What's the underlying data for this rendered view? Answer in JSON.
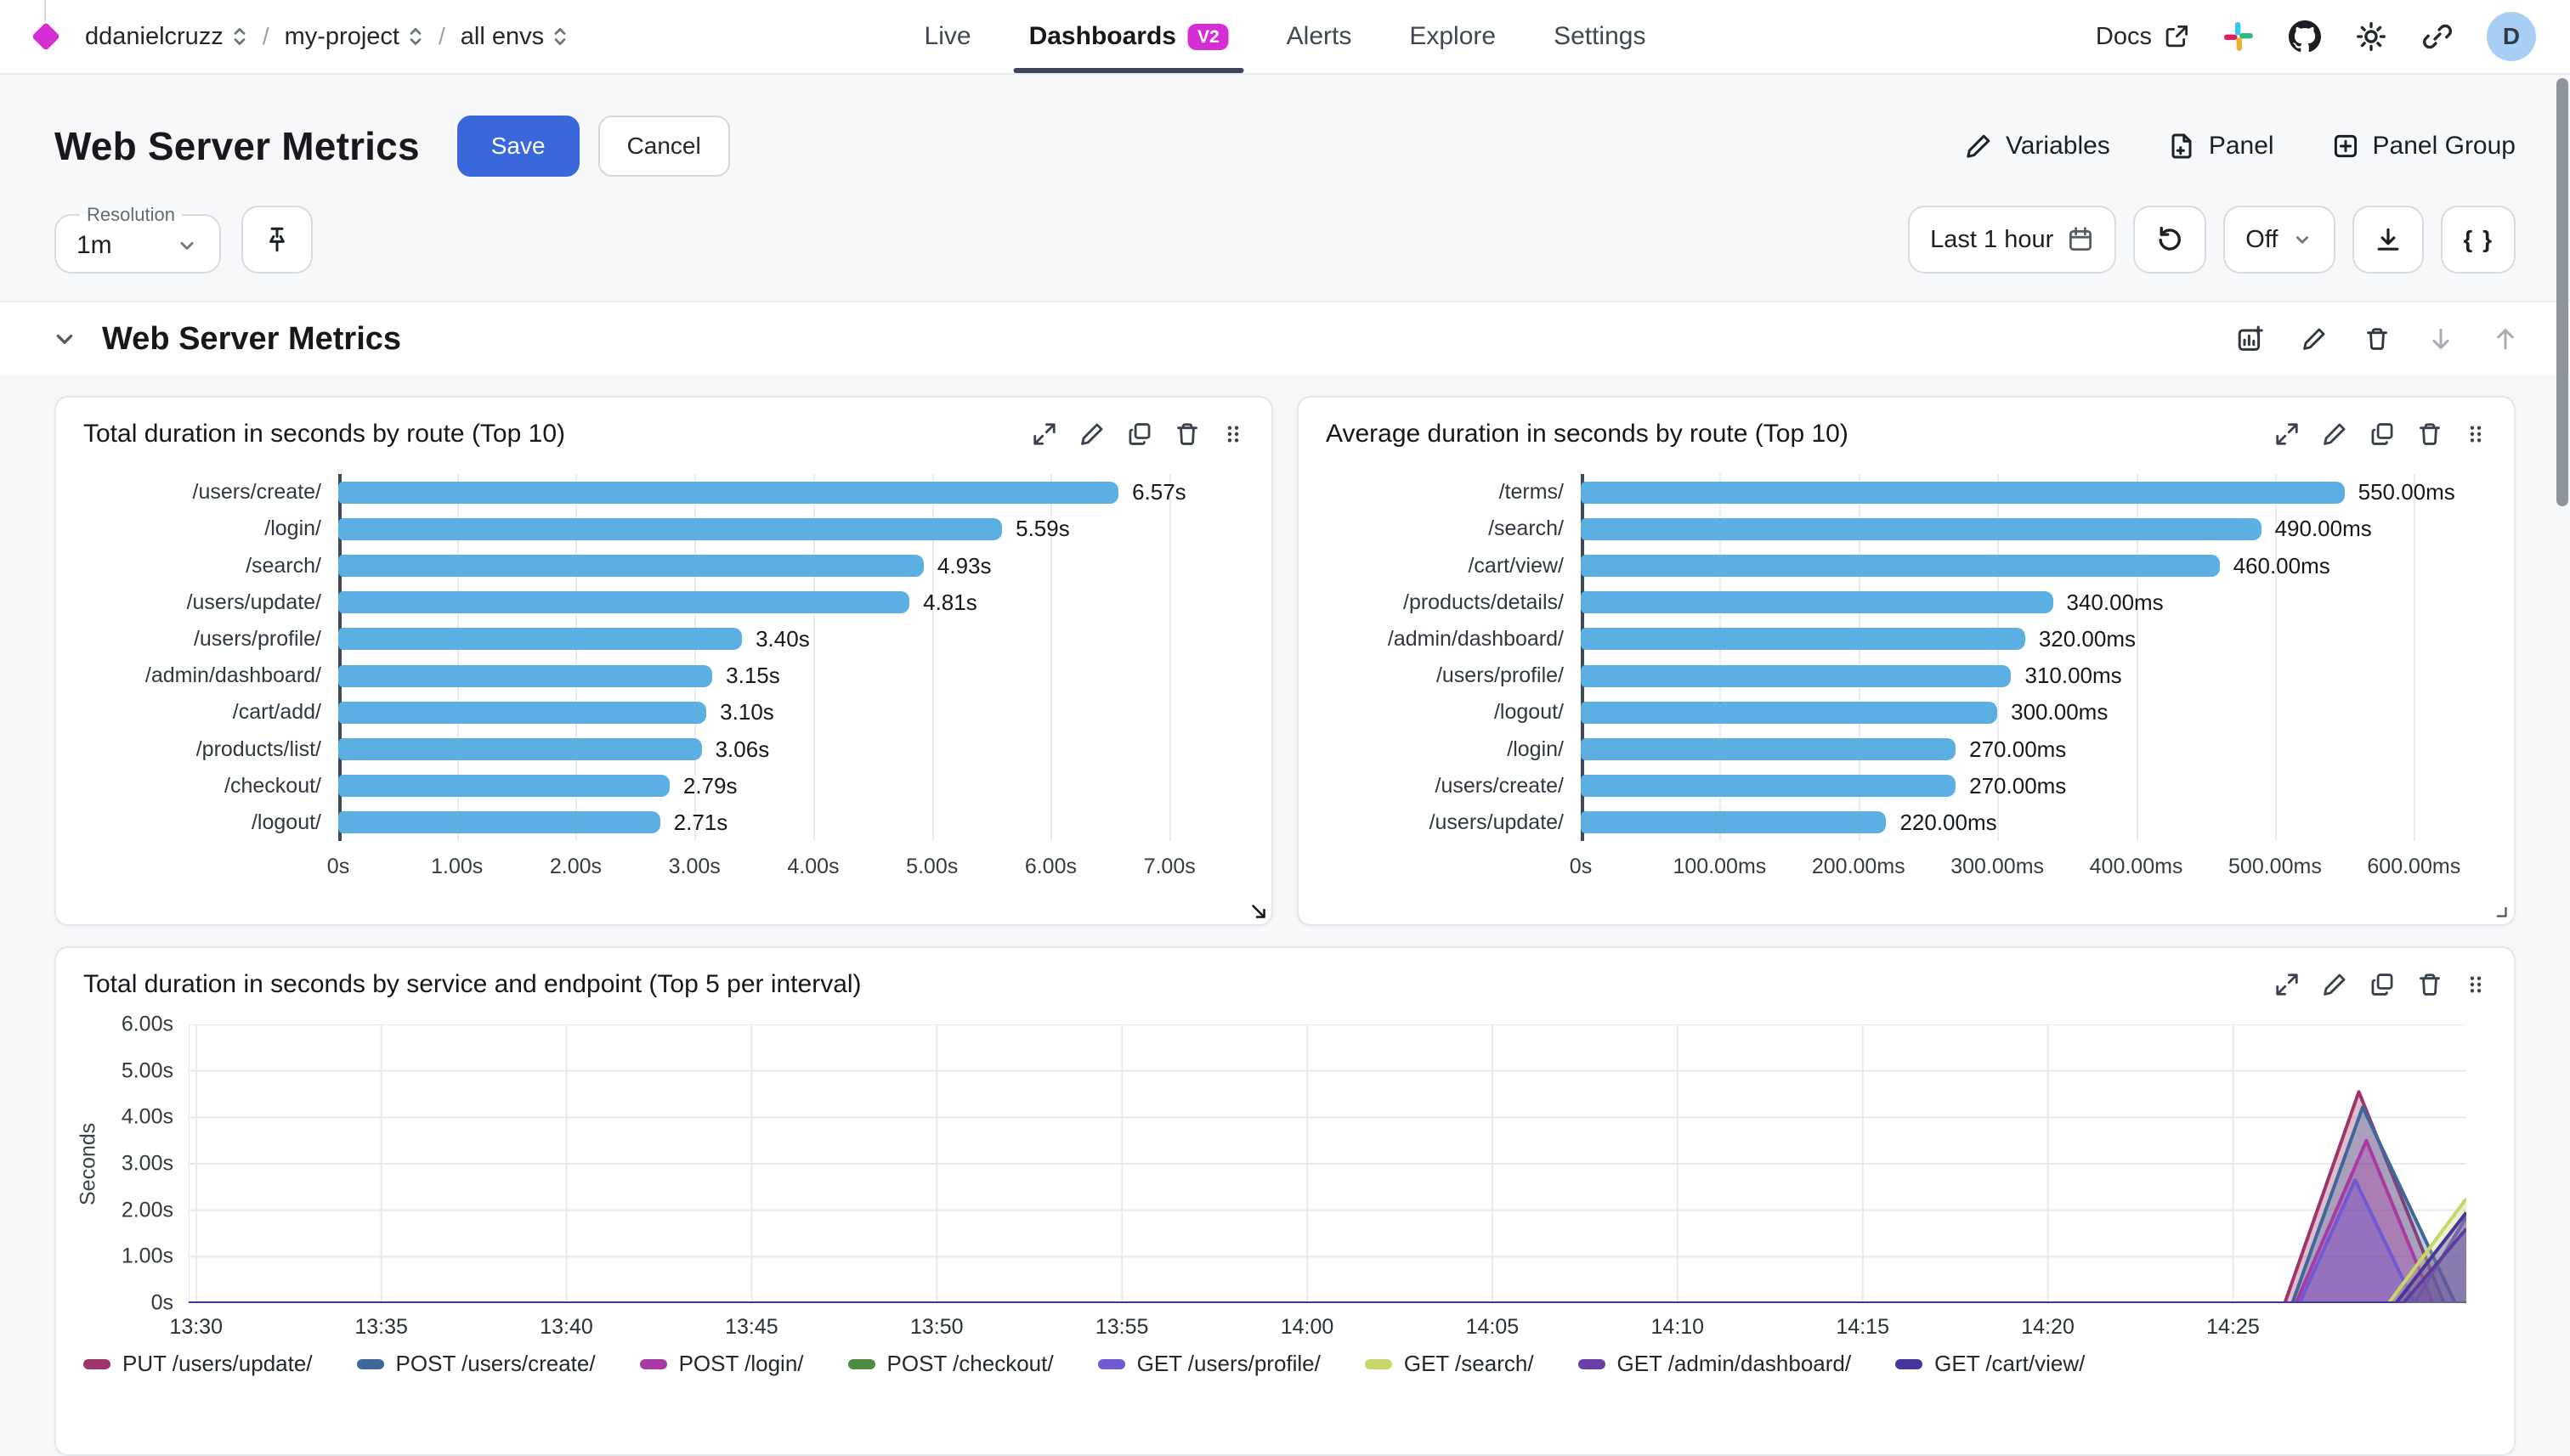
{
  "nav": {
    "breadcrumbs": [
      {
        "label": "ddanielcruzz"
      },
      {
        "label": "my-project"
      },
      {
        "label": "all envs"
      }
    ],
    "separator": "/",
    "tabs": [
      {
        "label": "Live",
        "active": false
      },
      {
        "label": "Dashboards",
        "active": true,
        "badge": "V2"
      },
      {
        "label": "Alerts",
        "active": false
      },
      {
        "label": "Explore",
        "active": false
      },
      {
        "label": "Settings",
        "active": false
      }
    ],
    "docs": "Docs",
    "icon_names": [
      "slack-icon",
      "github-icon",
      "theme-icon",
      "copy-link-icon"
    ],
    "avatar_initial": "D"
  },
  "page_header": {
    "title": "Web Server Metrics",
    "save": "Save",
    "cancel": "Cancel",
    "actions": [
      {
        "icon": "pencil-icon",
        "label": "Variables"
      },
      {
        "icon": "file-plus-icon",
        "label": "Panel"
      },
      {
        "icon": "square-plus-icon",
        "label": "Panel Group"
      }
    ]
  },
  "toolbar": {
    "resolution_label": "Resolution",
    "resolution_value": "1m",
    "time_range": "Last 1 hour",
    "auto_refresh": "Off",
    "braces": "{ }"
  },
  "section": {
    "title": "Web Server Metrics",
    "actions": [
      "add-chart-icon",
      "edit-icon",
      "delete-icon",
      "move-down-icon",
      "move-up-icon"
    ]
  },
  "panel_actions": [
    "expand-icon",
    "edit-icon",
    "duplicate-icon",
    "delete-icon",
    "drag-handle-icon"
  ],
  "colors": {
    "accent_magenta": "#D42ED4",
    "save_blue": "#3A67DA",
    "bar_blue": "#5BAFE3",
    "active_tab_underline": "#3D4656",
    "avatar_bg": "#A9CEF4"
  },
  "chart_data": [
    {
      "type": "bar",
      "orientation": "horizontal",
      "title": "Total duration in seconds by route (Top 10)",
      "bar_color": "#5BAFE3",
      "categories": [
        "/users/create/",
        "/login/",
        "/search/",
        "/users/update/",
        "/users/profile/",
        "/admin/dashboard/",
        "/cart/add/",
        "/products/list/",
        "/checkout/",
        "/logout/"
      ],
      "values": [
        6.57,
        5.59,
        4.93,
        4.81,
        3.4,
        3.15,
        3.1,
        3.06,
        2.79,
        2.71
      ],
      "value_labels": [
        "6.57s",
        "5.59s",
        "4.93s",
        "4.81s",
        "3.40s",
        "3.15s",
        "3.10s",
        "3.06s",
        "2.79s",
        "2.71s"
      ],
      "x_ticks": [
        {
          "v": 0,
          "label": "0s"
        },
        {
          "v": 1,
          "label": "1.00s"
        },
        {
          "v": 2,
          "label": "2.00s"
        },
        {
          "v": 3,
          "label": "3.00s"
        },
        {
          "v": 4,
          "label": "4.00s"
        },
        {
          "v": 5,
          "label": "5.00s"
        },
        {
          "v": 6,
          "label": "6.00s"
        },
        {
          "v": 7,
          "label": "7.00s"
        }
      ],
      "x_max": 7.6
    },
    {
      "type": "bar",
      "orientation": "horizontal",
      "title": "Average duration in seconds by route (Top 10)",
      "bar_color": "#5BAFE3",
      "categories": [
        "/terms/",
        "/search/",
        "/cart/view/",
        "/products/details/",
        "/admin/dashboard/",
        "/users/profile/",
        "/logout/",
        "/login/",
        "/users/create/",
        "/users/update/"
      ],
      "values": [
        550,
        490,
        460,
        340,
        320,
        310,
        300,
        270,
        270,
        220
      ],
      "value_labels": [
        "550.00ms",
        "490.00ms",
        "460.00ms",
        "340.00ms",
        "320.00ms",
        "310.00ms",
        "300.00ms",
        "270.00ms",
        "270.00ms",
        "220.00ms"
      ],
      "x_ticks": [
        {
          "v": 0,
          "label": "0s"
        },
        {
          "v": 100,
          "label": "100.00ms"
        },
        {
          "v": 200,
          "label": "200.00ms"
        },
        {
          "v": 300,
          "label": "300.00ms"
        },
        {
          "v": 400,
          "label": "400.00ms"
        },
        {
          "v": 500,
          "label": "500.00ms"
        },
        {
          "v": 600,
          "label": "600.00ms"
        }
      ],
      "x_max": 650
    },
    {
      "type": "area",
      "title": "Total duration in seconds by service and endpoint (Top 5 per interval)",
      "ylabel": "Seconds",
      "y_max": 6,
      "y_ticks": [
        {
          "v": 0,
          "label": "0s"
        },
        {
          "v": 1,
          "label": "1.00s"
        },
        {
          "v": 2,
          "label": "2.00s"
        },
        {
          "v": 3,
          "label": "3.00s"
        },
        {
          "v": 4,
          "label": "4.00s"
        },
        {
          "v": 5,
          "label": "5.00s"
        },
        {
          "v": 6,
          "label": "6.00s"
        }
      ],
      "x_domain": [
        0,
        61.5
      ],
      "x_ticks": [
        {
          "v": 0.2,
          "label": "13:30"
        },
        {
          "v": 5.2,
          "label": "13:35"
        },
        {
          "v": 10.2,
          "label": "13:40"
        },
        {
          "v": 15.2,
          "label": "13:45"
        },
        {
          "v": 20.2,
          "label": "13:50"
        },
        {
          "v": 25.2,
          "label": "13:55"
        },
        {
          "v": 30.2,
          "label": "14:00"
        },
        {
          "v": 35.2,
          "label": "14:05"
        },
        {
          "v": 40.2,
          "label": "14:10"
        },
        {
          "v": 45.2,
          "label": "14:15"
        },
        {
          "v": 50.2,
          "label": "14:20"
        },
        {
          "v": 55.2,
          "label": "14:25"
        }
      ],
      "fill_opacity": 0.33,
      "series": [
        {
          "name": "PUT /users/update/",
          "color": "#9E3469",
          "points": [
            [
              0,
              0
            ],
            [
              56.6,
              0
            ],
            [
              58.6,
              4.55
            ],
            [
              60.9,
              0
            ],
            [
              61.5,
              0
            ]
          ]
        },
        {
          "name": "POST /users/create/",
          "color": "#3D6899",
          "points": [
            [
              0,
              0
            ],
            [
              56.8,
              0
            ],
            [
              58.7,
              4.22
            ],
            [
              61.2,
              0
            ],
            [
              61.5,
              0
            ]
          ]
        },
        {
          "name": "POST /login/",
          "color": "#A83AA3",
          "points": [
            [
              0,
              0
            ],
            [
              56.9,
              0
            ],
            [
              58.8,
              3.5
            ],
            [
              60.6,
              0
            ],
            [
              61.5,
              0
            ]
          ]
        },
        {
          "name": "POST /checkout/",
          "color": "#4E8C3F",
          "points": [
            [
              0,
              0
            ],
            [
              61.5,
              0
            ]
          ]
        },
        {
          "name": "GET /users/profile/",
          "color": "#7158D4",
          "points": [
            [
              0,
              0
            ],
            [
              57.0,
              0
            ],
            [
              58.5,
              2.65
            ],
            [
              60.1,
              0
            ],
            [
              61.5,
              1.85
            ]
          ]
        },
        {
          "name": "GET /search/",
          "color": "#C9D66B",
          "points": [
            [
              0,
              0
            ],
            [
              59.4,
              0
            ],
            [
              61.5,
              2.25
            ]
          ]
        },
        {
          "name": "GET /admin/dashboard/",
          "color": "#6B3FA6",
          "points": [
            [
              0,
              0
            ],
            [
              59.8,
              0
            ],
            [
              61.5,
              1.6
            ]
          ]
        },
        {
          "name": "GET /cart/view/",
          "color": "#46359C",
          "points": [
            [
              0,
              0
            ],
            [
              59.6,
              0
            ],
            [
              61.5,
              1.95
            ]
          ]
        }
      ],
      "legend": [
        {
          "label": "PUT /users/update/",
          "color": "#9E3469"
        },
        {
          "label": "POST /users/create/",
          "color": "#3D6899"
        },
        {
          "label": "POST /login/",
          "color": "#A83AA3"
        },
        {
          "label": "POST /checkout/",
          "color": "#4E8C3F"
        },
        {
          "label": "GET /users/profile/",
          "color": "#7158D4"
        },
        {
          "label": "GET /search/",
          "color": "#C9D66B"
        },
        {
          "label": "GET /admin/dashboard/",
          "color": "#6B3FA6"
        },
        {
          "label": "GET /cart/view/",
          "color": "#46359C"
        }
      ]
    }
  ]
}
